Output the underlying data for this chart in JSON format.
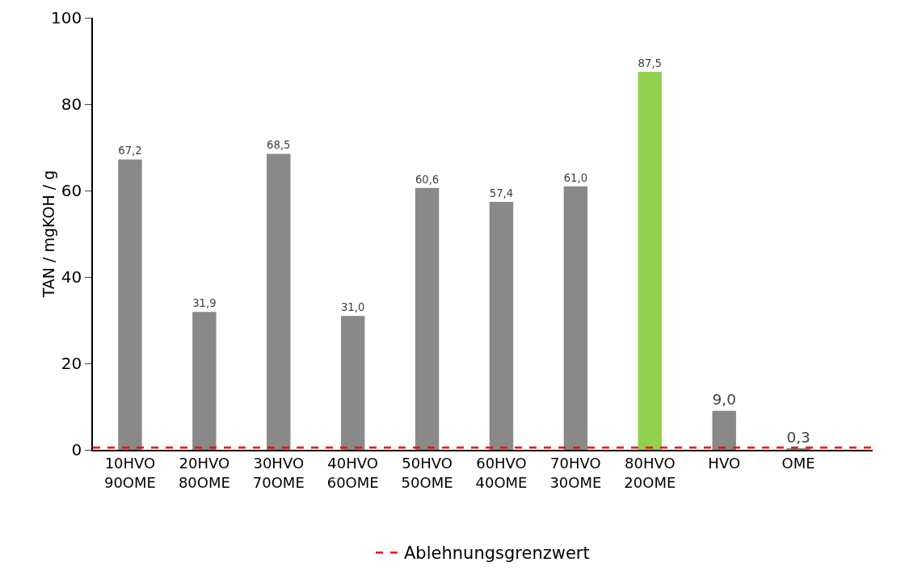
{
  "chart_data": {
    "type": "bar",
    "ylabel": "TAN / mgKOH / g",
    "categories": [
      "10HVO\n90OME",
      "20HVO\n80OME",
      "30HVO\n70OME",
      "40HVO\n60OME",
      "50HVO\n50OME",
      "60HVO\n40OME",
      "70HVO\n30OME",
      "80HVO\n20OME",
      "HVO",
      "OME"
    ],
    "values": [
      67.2,
      31.9,
      68.5,
      31.0,
      60.6,
      57.4,
      61.0,
      87.5,
      9.0,
      0.3
    ],
    "value_labels": [
      "67,2",
      "31,9",
      "68,5",
      "31,0",
      "60,6",
      "57,4",
      "61,0",
      "87,5",
      "9,0",
      "0,3"
    ],
    "colors": [
      "#898989",
      "#898989",
      "#898989",
      "#898989",
      "#898989",
      "#898989",
      "#898989",
      "#92d050",
      "#898989",
      "#898989"
    ],
    "ylim": [
      0,
      100
    ],
    "yticks": [
      0,
      20,
      40,
      60,
      80,
      100
    ],
    "grid": false,
    "legend": "bottom",
    "ref_lines": [
      {
        "axis": "y",
        "value": 0.5,
        "label": "Ablehnungsgrenzwert",
        "color": "#ff0000",
        "line_style": "dashed"
      }
    ]
  }
}
